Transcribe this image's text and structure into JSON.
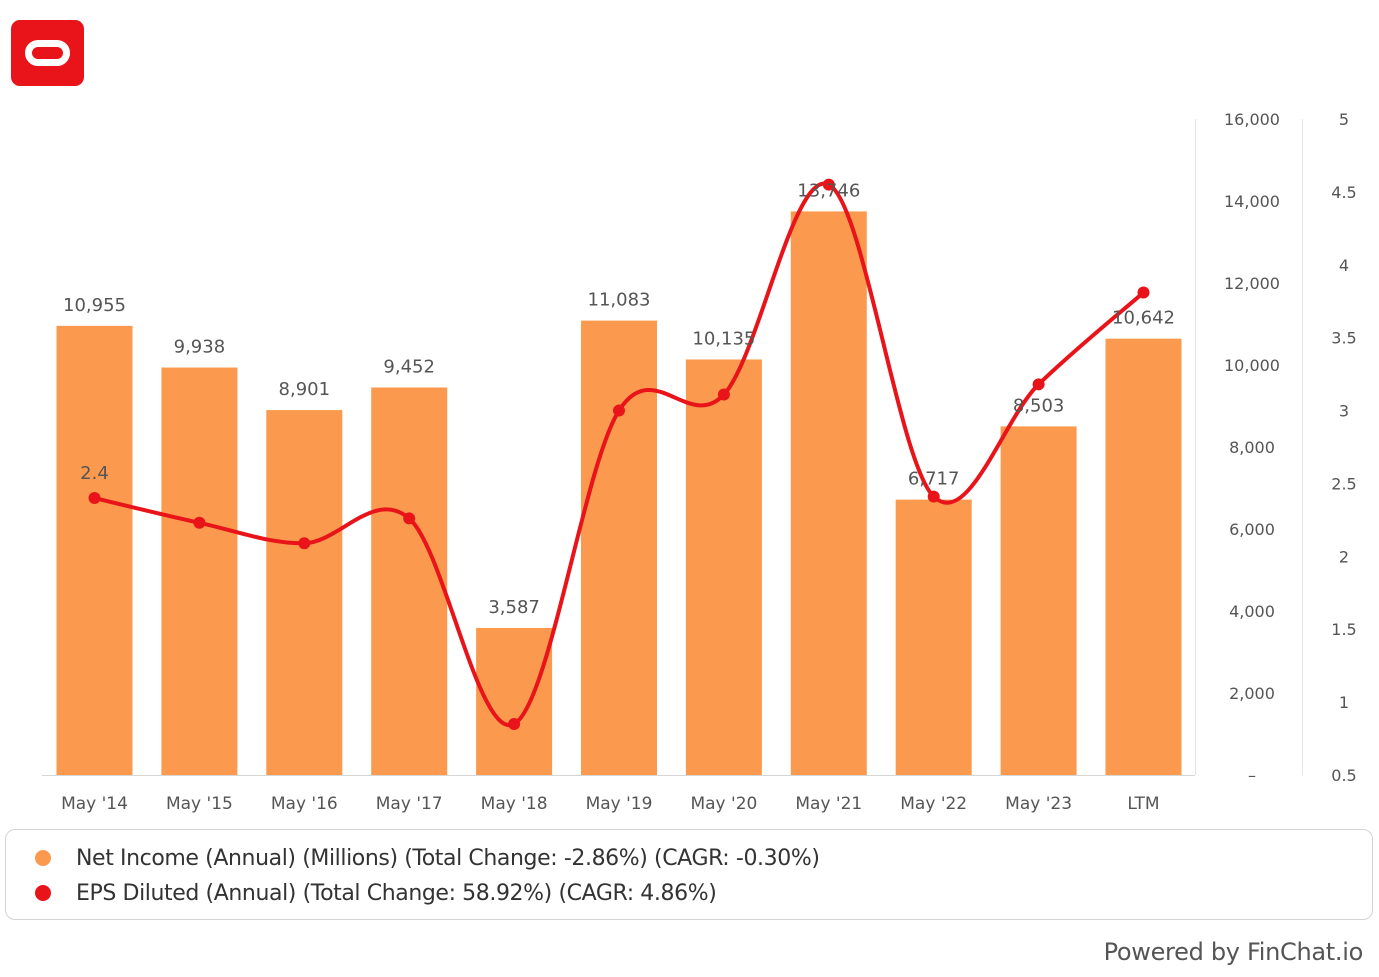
{
  "chart_data": {
    "type": "bar",
    "categories": [
      "May '14",
      "May '15",
      "May '16",
      "May '17",
      "May '18",
      "May '19",
      "May '20",
      "May '21",
      "May '22",
      "May '23",
      "LTM"
    ],
    "series": [
      {
        "name": "Net Income (Annual) (Millions) (Total Change: -2.86%) (CAGR: -0.30%)",
        "type": "bar",
        "axis": "left",
        "color": "#fb9a4f",
        "values": [
          10955,
          9938,
          8901,
          9452,
          3587,
          11083,
          10135,
          13746,
          6717,
          8503,
          10642
        ],
        "labels": [
          "10,955",
          "9,938",
          "8,901",
          "9,452",
          "3,587",
          "11,083",
          "10,135",
          "13,746",
          "6,717",
          "8,503",
          "10,642"
        ]
      },
      {
        "name": "EPS Diluted (Annual) (Total Change: 58.92%) (CAGR: 4.86%)",
        "type": "line",
        "axis": "right",
        "color": "#e8141a",
        "values": [
          2.4,
          2.23,
          2.09,
          2.26,
          0.85,
          3.0,
          3.11,
          4.55,
          2.41,
          3.18,
          3.81
        ],
        "labels": [
          "2.4"
        ]
      }
    ],
    "y_left": {
      "range": [
        0,
        16000
      ],
      "ticks": [
        0,
        2000,
        4000,
        6000,
        8000,
        10000,
        12000,
        14000,
        16000
      ],
      "tick_labels": [
        "–",
        "2,000",
        "4,000",
        "6,000",
        "8,000",
        "10,000",
        "12,000",
        "14,000",
        "16,000"
      ]
    },
    "y_right": {
      "range": [
        0.5,
        5
      ],
      "ticks": [
        0.5,
        1,
        1.5,
        2,
        2.5,
        3,
        3.5,
        4,
        4.5,
        5
      ],
      "tick_labels": [
        "0.5",
        "1",
        "1.5",
        "2",
        "2.5",
        "3",
        "3.5",
        "4",
        "4.5",
        "5"
      ]
    },
    "grid": false,
    "legend_position": "bottom"
  },
  "brand": {
    "logo": "oracle-logo",
    "accent": "#e8141a"
  },
  "legend": {
    "items": [
      {
        "label": "Net Income (Annual) (Millions) (Total Change: -2.86%) (CAGR: -0.30%)",
        "color": "#fb9a4f"
      },
      {
        "label": "EPS Diluted (Annual) (Total Change: 58.92%) (CAGR: 4.86%)",
        "color": "#e8141a"
      }
    ]
  },
  "footer": {
    "text": "Powered by FinChat.io"
  }
}
